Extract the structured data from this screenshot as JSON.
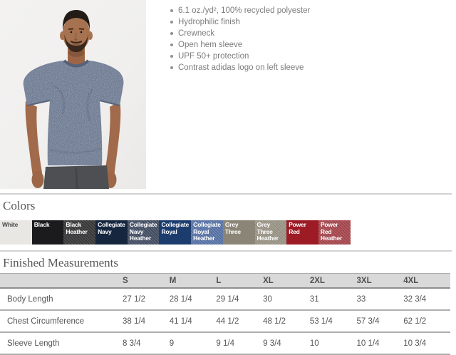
{
  "product": {
    "features": [
      "6.1 oz./yd², 100% recycled polyester",
      "Hydrophilic finish",
      "Crewneck",
      "Open hem sleeve",
      "UPF 50+ protection",
      "Contrast adidas logo on left sleeve"
    ]
  },
  "colors_section": {
    "title": "Colors",
    "swatches": [
      {
        "label": "White",
        "bg": "#e8e7e3",
        "text": "#4a4a4a",
        "heather": false
      },
      {
        "label": "Black",
        "bg": "#1b1b1d",
        "text": "#ffffff",
        "heather": false
      },
      {
        "label": "Black Heather",
        "bg": "#3b3b3d",
        "text": "#ffffff",
        "heather": true
      },
      {
        "label": "Collegiate Navy",
        "bg": "#16263f",
        "text": "#ffffff",
        "heather": false
      },
      {
        "label": "Collegiate Navy Heather",
        "bg": "#47536a",
        "text": "#ffffff",
        "heather": true
      },
      {
        "label": "Collegiate Royal",
        "bg": "#1c3c6e",
        "text": "#ffffff",
        "heather": false
      },
      {
        "label": "Collegiate Royal Heather",
        "bg": "#5d7ab0",
        "text": "#ffffff",
        "heather": true
      },
      {
        "label": "Grey Three",
        "bg": "#8a8577",
        "text": "#ffffff",
        "heather": false
      },
      {
        "label": "Grey Three Heather",
        "bg": "#a39d8e",
        "text": "#ffffff",
        "heather": true
      },
      {
        "label": "Power Red",
        "bg": "#9d1b25",
        "text": "#ffffff",
        "heather": false
      },
      {
        "label": "Power Red Heather",
        "bg": "#b04a52",
        "text": "#ffffff",
        "heather": true
      }
    ]
  },
  "measurements_section": {
    "title": "Finished Measurements",
    "columns": [
      "S",
      "M",
      "L",
      "XL",
      "2XL",
      "3XL",
      "4XL"
    ],
    "rows": [
      {
        "label": "Body Length",
        "values": [
          "27 1/2",
          "28 1/4",
          "29 1/4",
          "30",
          "31",
          "33",
          "32 3/4"
        ]
      },
      {
        "label": "Chest Circumference",
        "values": [
          "38 1/4",
          "41 1/4",
          "44 1/2",
          "48 1/2",
          "53 1/4",
          "57 3/4",
          "62 1/2"
        ]
      },
      {
        "label": "Sleeve Length",
        "values": [
          "8 3/4",
          "9",
          "9 1/4",
          "9 3/4",
          "10",
          "10 1/4",
          "10 3/4"
        ]
      }
    ]
  }
}
